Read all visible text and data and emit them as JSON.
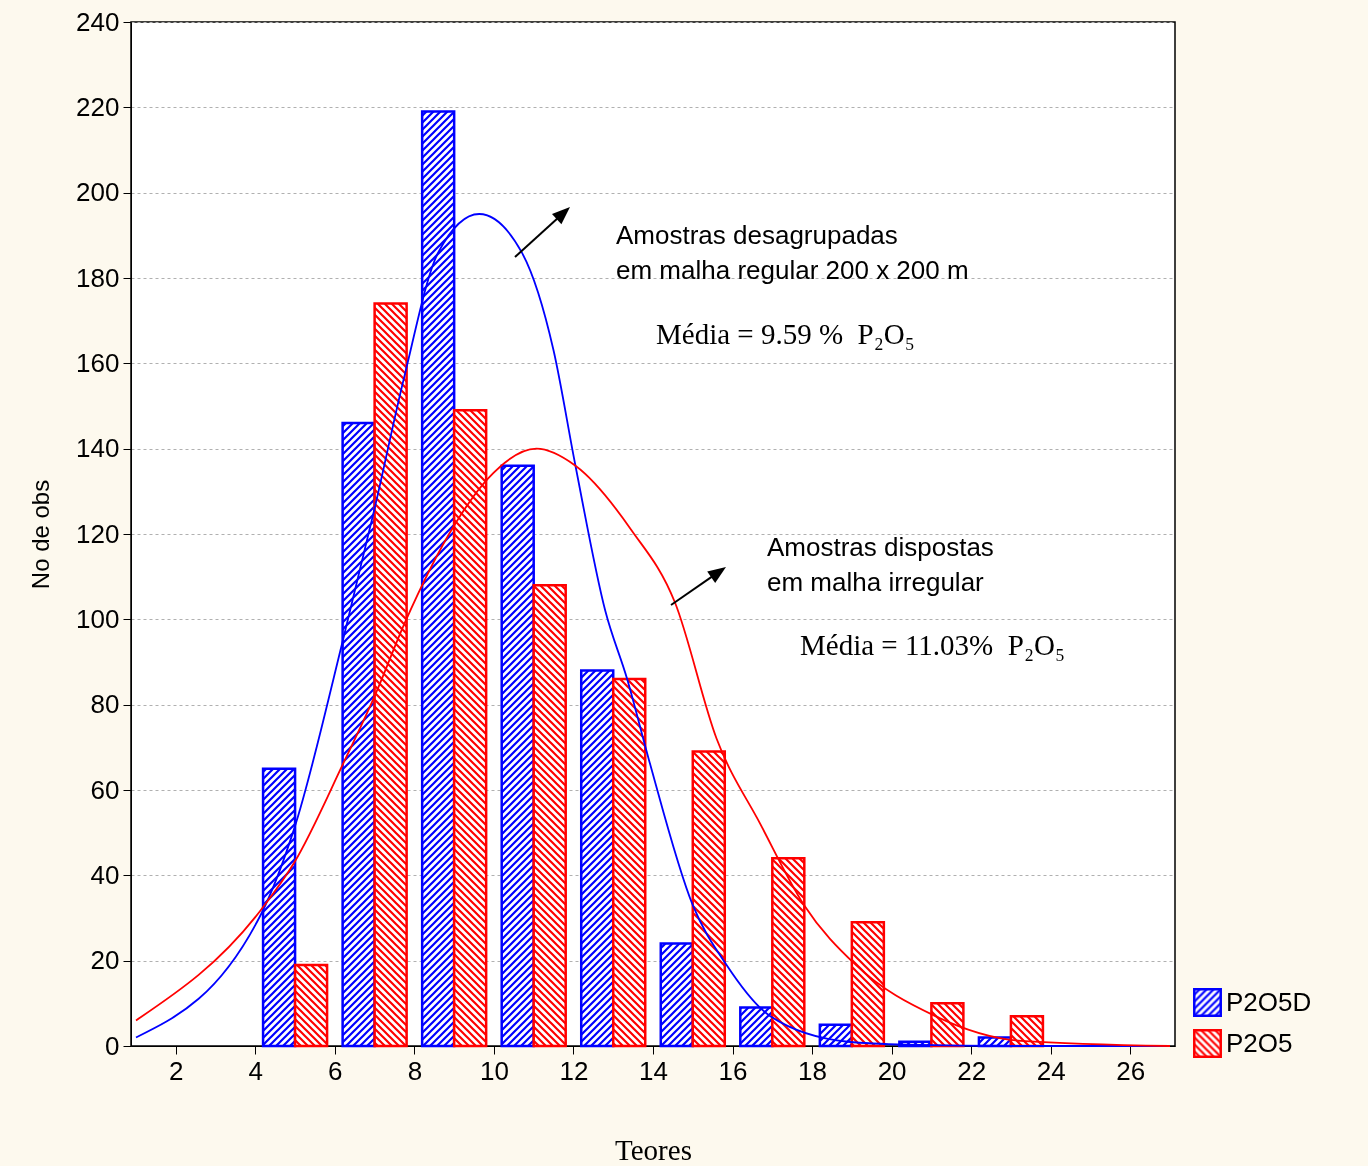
{
  "chart_data": {
    "type": "bar",
    "xlabel": "Teores",
    "ylabel": "No de obs",
    "x": [
      5,
      7,
      9,
      11,
      13,
      15,
      17,
      19,
      21,
      23
    ],
    "series": [
      {
        "name": "P2O5D",
        "color": "#0000ff",
        "values": [
          65,
          146,
          219,
          136,
          88,
          24,
          9,
          5,
          1,
          2
        ]
      },
      {
        "name": "P2O5",
        "color": "#ff0000",
        "values": [
          19,
          174,
          149,
          108,
          86,
          69,
          44,
          29,
          10,
          7
        ]
      },
      {
        "type": "line",
        "color": "#0000ff",
        "x": [
          1,
          4.15,
          4.98,
          6.2,
          7,
          7.75,
          8.6,
          9.63,
          10.7,
          11.5,
          12.05,
          12.8,
          13.35,
          13.9,
          15,
          15.85,
          16.95,
          18.9,
          20.4,
          23,
          27
        ],
        "values": [
          2,
          31,
          51,
          95,
          126,
          157,
          186,
          195,
          186,
          163,
          136,
          102,
          86,
          67,
          33,
          19,
          7,
          1,
          0.3,
          0,
          0
        ]
      },
      {
        "type": "line",
        "color": "#ff0000",
        "x": [
          1,
          4.15,
          4.98,
          6.2,
          7,
          7.75,
          9,
          9.85,
          11.07,
          12.05,
          13.45,
          14.55,
          15.6,
          16.7,
          17.8,
          19.1,
          21.1,
          23.25,
          27
        ],
        "values": [
          6,
          32,
          43,
          66,
          82,
          99,
          122,
          133,
          140,
          136,
          121,
          104,
          72,
          52,
          33,
          19,
          7,
          1.2,
          0
        ]
      }
    ],
    "xlim": [
      1,
      27
    ],
    "xticks": [
      2,
      4,
      6,
      8,
      10,
      12,
      14,
      16,
      18,
      20,
      22,
      24,
      26
    ],
    "ylim": [
      0,
      240
    ],
    "yticks": [
      0,
      20,
      40,
      60,
      80,
      100,
      120,
      140,
      160,
      180,
      200,
      220,
      240
    ],
    "grid": "y",
    "legend": "bottom right",
    "line_style": "solid",
    "marker": "none",
    "annotations": [
      "Amostras desagrupadas\nem malha regular 200 x 200 m",
      "Média = 9.59 %  P₂O₅",
      "Amostras dispostas\nem malha irregular",
      "Média = 11.03%  P₂O₅"
    ]
  }
}
